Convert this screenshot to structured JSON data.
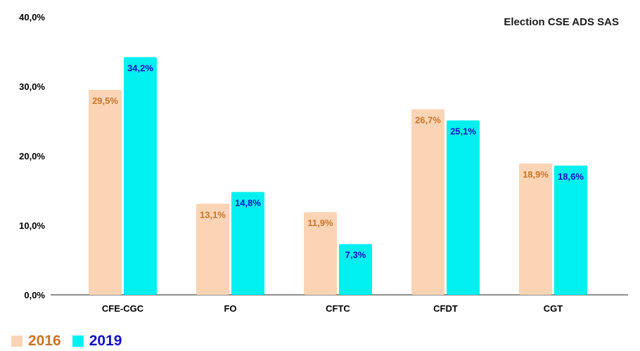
{
  "chart_data": {
    "type": "bar",
    "title": "Election CSE ADS SAS",
    "categories": [
      "CFE-CGC",
      "FO",
      "CFTC",
      "CFDT",
      "CGT"
    ],
    "series": [
      {
        "name": "2016",
        "values": [
          29.5,
          13.1,
          11.9,
          26.7,
          18.9
        ],
        "labels": [
          "29,5%",
          "13,1%",
          "11,9%",
          "26,7%",
          "18,9%"
        ],
        "color": "#fad4b4",
        "label_color": "#c8752a"
      },
      {
        "name": "2019",
        "values": [
          34.2,
          14.8,
          7.3,
          25.1,
          18.6
        ],
        "labels": [
          "34,2%",
          "14,8%",
          "7,3%",
          "25,1%",
          "18,6%"
        ],
        "color": "#00f0f0",
        "label_color": "#1010c8"
      }
    ],
    "yticks": [
      0,
      10,
      20,
      30,
      40
    ],
    "ytick_labels": [
      "0,0%",
      "10,0%",
      "20,0%",
      "30,0%",
      "40,0%"
    ],
    "ylim": [
      0,
      40
    ],
    "grid": false,
    "legend_position": "bottom-left"
  }
}
